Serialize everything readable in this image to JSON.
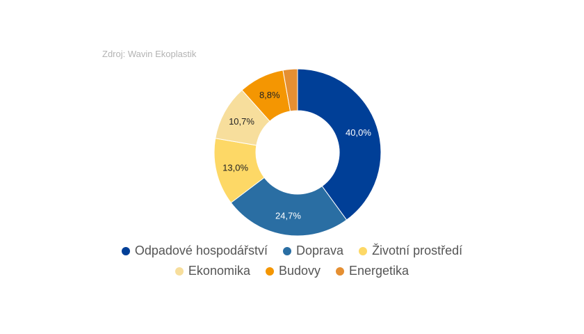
{
  "source_note": "Zdroj: Wavin Ekoplastik",
  "chart_data": {
    "type": "pie",
    "donut": true,
    "categories": [
      "Odpadové hospodářství",
      "Doprava",
      "Životní prostředí",
      "Ekonomika",
      "Budovy",
      "Energetika"
    ],
    "values": [
      40.0,
      24.7,
      13.0,
      10.7,
      8.8,
      2.8
    ],
    "value_labels": [
      "40,0%",
      "24,7%",
      "13,0%",
      "10,7%",
      "8,8%",
      ""
    ],
    "colors": [
      "#003f97",
      "#2a6ea3",
      "#fdd866",
      "#f7de9c",
      "#f49602",
      "#e58f32"
    ],
    "label_colors": [
      "#ffffff",
      "#ffffff",
      "#222222",
      "#222222",
      "#222222",
      "#222222"
    ],
    "legend_position": "bottom"
  }
}
